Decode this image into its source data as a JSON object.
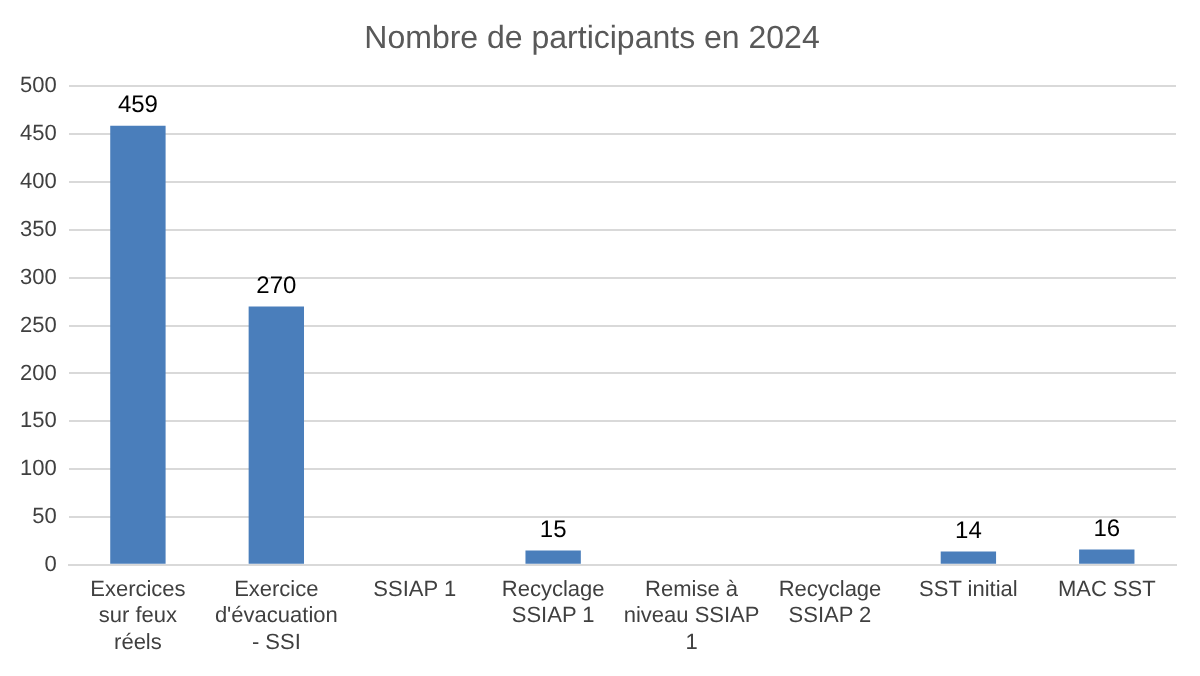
{
  "chart_data": {
    "type": "bar",
    "title": "Nombre de participants en 2024",
    "categories": [
      "Exercices sur feux réels",
      "Exercice d'évacuation - SSI",
      "SSIAP 1",
      "Recyclage SSIAP 1",
      "Remise à niveau SSIAP 1",
      "Recyclage SSIAP 2",
      "SST initial",
      "MAC SST"
    ],
    "values": [
      459,
      270,
      null,
      15,
      null,
      null,
      14,
      16
    ],
    "color": "#4a7ebb",
    "ylim": [
      0,
      500
    ],
    "yticks": [
      0,
      50,
      100,
      150,
      200,
      250,
      300,
      350,
      400,
      450,
      500
    ],
    "grid": "y",
    "data_labels": true,
    "legend": false
  }
}
